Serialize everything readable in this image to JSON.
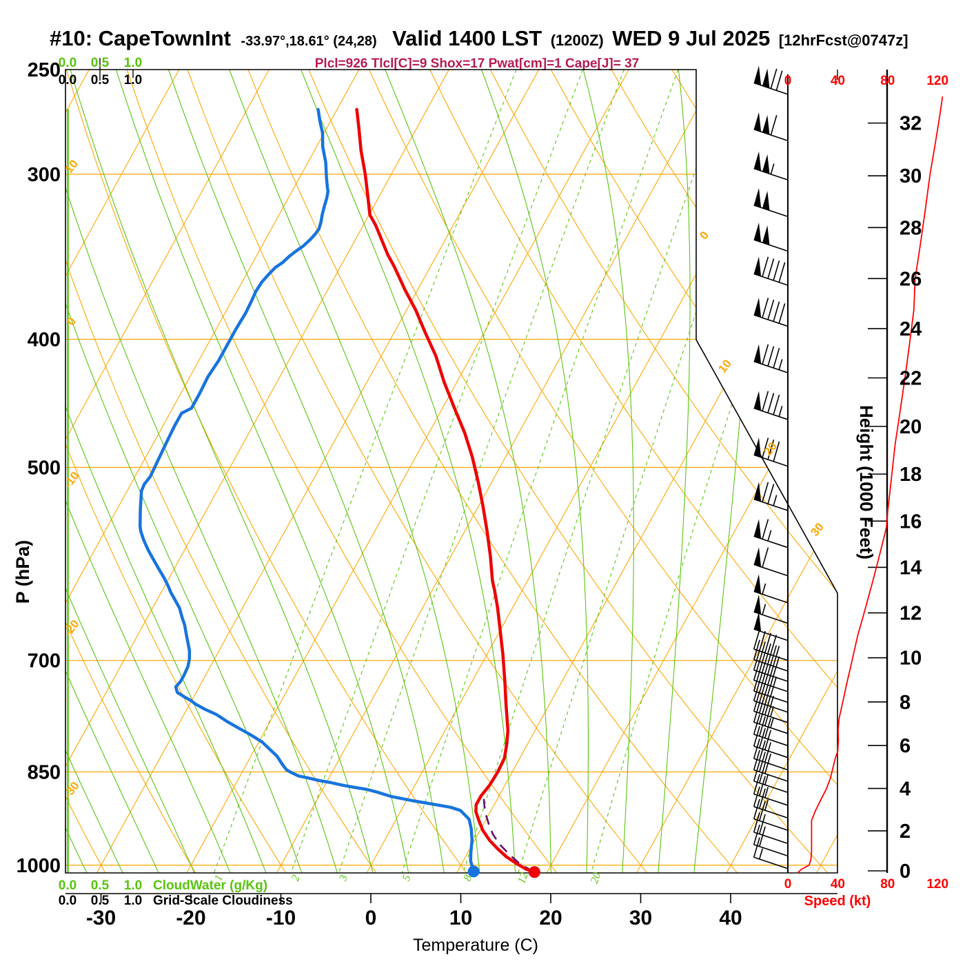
{
  "header": {
    "station": "#10: CapeTownInt",
    "coords": "-33.97°,18.61° (24,28)",
    "valid": "Valid 1400 LST",
    "zulu": "(1200Z)",
    "date": "WED 9 Jul 2025",
    "fcst": "[12hrFcst@0747z]"
  },
  "params_line": "Plcl=926 Tlcl[C]=9 Shox=17 Pwat[cm]=1 Cape[J]= 37",
  "axes": {
    "pressure_label": "P (hPa)",
    "pressure_ticks": [
      250,
      300,
      400,
      500,
      700,
      850,
      1000
    ],
    "temp_label": "Temperature (C)",
    "temp_ticks": [
      -30,
      -20,
      -10,
      0,
      10,
      20,
      30,
      40
    ],
    "height_label": "Height (1000 Feet)",
    "height_ticks": [
      0,
      2,
      4,
      6,
      8,
      10,
      12,
      14,
      16,
      18,
      20,
      22,
      24,
      26,
      28,
      30,
      32
    ],
    "speed_label": "Speed (kt)",
    "speed_ticks": [
      0,
      40,
      80,
      120
    ],
    "cloudwater_label": "CloudWater (g/Kg)",
    "cloudiness_label": "Grid-Scale Cloudiness",
    "cloud_ticks": [
      "0.0",
      "0.5",
      "1.0"
    ],
    "theta_labels_left": [
      "10",
      "0",
      "-10",
      "-20",
      "-30"
    ],
    "isotherm_labels_right": [
      "0",
      "10",
      "20",
      "30"
    ],
    "mixing_ratio_labels": [
      "1",
      "2",
      "3",
      "5",
      "8",
      "12",
      "20"
    ]
  },
  "colors": {
    "grid_orange": "#ffa600",
    "grid_green": "#58c40e",
    "temperature_red": "#ee0000",
    "dewpoint_blue": "#1874dd",
    "parcel_purple": "#5e1168",
    "speed_red": "#ff0000",
    "params_crimson": "#b81b54",
    "ink": "#000000"
  },
  "chart_data": {
    "type": "line",
    "title": "#10: CapeTownInt Skew-T log-P sounding, valid 1400 LST (1200Z) WED 9 Jul 2025",
    "xlabel": "Temperature (C)",
    "ylabel": "P (hPa)",
    "ylim": [
      1013,
      250
    ],
    "xlim_surface": [
      -34,
      52
    ],
    "parameters": {
      "Plcl": 926,
      "Tlcl_C": 9,
      "Shox": 17,
      "Pwat_cm": 1,
      "Cape_J": 37
    },
    "temperature": [
      [
        268,
        -47.8
      ],
      [
        277,
        -46.4
      ],
      [
        288,
        -44.8
      ],
      [
        300,
        -42.9
      ],
      [
        310,
        -41.5
      ],
      [
        322,
        -39.9
      ],
      [
        328,
        -38.6
      ],
      [
        335,
        -37.3
      ],
      [
        345,
        -35.5
      ],
      [
        352,
        -34.1
      ],
      [
        358,
        -33.0
      ],
      [
        367,
        -31.4
      ],
      [
        380,
        -29.0
      ],
      [
        395,
        -26.6
      ],
      [
        412,
        -23.9
      ],
      [
        431,
        -21.4
      ],
      [
        450,
        -18.8
      ],
      [
        471,
        -16.0
      ],
      [
        491,
        -13.7
      ],
      [
        513,
        -11.5
      ],
      [
        535,
        -9.5
      ],
      [
        559,
        -7.5
      ],
      [
        584,
        -5.6
      ],
      [
        609,
        -3.9
      ],
      [
        619,
        -3.1
      ],
      [
        638,
        -1.7
      ],
      [
        661,
        -0.2
      ],
      [
        693,
        1.8
      ],
      [
        727,
        3.7
      ],
      [
        754,
        5.1
      ],
      [
        791,
        7.0
      ],
      [
        810,
        7.7
      ],
      [
        830,
        8.3
      ],
      [
        850,
        8.4
      ],
      [
        870,
        8.3
      ],
      [
        886,
        8.0
      ],
      [
        900,
        8.0
      ],
      [
        911,
        8.4
      ],
      [
        924,
        9.2
      ],
      [
        941,
        10.3
      ],
      [
        958,
        11.7
      ],
      [
        972,
        13.1
      ],
      [
        985,
        14.5
      ],
      [
        998,
        16.2
      ],
      [
        1007,
        17.5
      ],
      [
        1012,
        18.6
      ]
    ],
    "dewpoint": [
      [
        268,
        -52.1
      ],
      [
        274,
        -51.1
      ],
      [
        279,
        -50.2
      ],
      [
        286,
        -49.3
      ],
      [
        294,
        -48.0
      ],
      [
        301,
        -47.1
      ],
      [
        307,
        -46.3
      ],
      [
        309,
        -46.0
      ],
      [
        313,
        -45.7
      ],
      [
        317,
        -45.5
      ],
      [
        322,
        -45.2
      ],
      [
        326,
        -44.9
      ],
      [
        330,
        -44.7
      ],
      [
        333,
        -44.8
      ],
      [
        336,
        -45.0
      ],
      [
        340,
        -45.4
      ],
      [
        343,
        -45.9
      ],
      [
        346,
        -46.3
      ],
      [
        350,
        -46.7
      ],
      [
        353,
        -47.2
      ],
      [
        357,
        -47.5
      ],
      [
        362,
        -47.8
      ],
      [
        368,
        -47.9
      ],
      [
        373,
        -47.8
      ],
      [
        382,
        -47.7
      ],
      [
        393,
        -47.8
      ],
      [
        404,
        -47.8
      ],
      [
        415,
        -47.8
      ],
      [
        427,
        -48.0
      ],
      [
        439,
        -47.9
      ],
      [
        451,
        -47.9
      ],
      [
        455,
        -48.7
      ],
      [
        465,
        -48.7
      ],
      [
        477,
        -48.6
      ],
      [
        488,
        -48.5
      ],
      [
        498,
        -48.4
      ],
      [
        508,
        -48.3
      ],
      [
        515,
        -48.5
      ],
      [
        521,
        -48.4
      ],
      [
        538,
        -47.4
      ],
      [
        554,
        -46.4
      ],
      [
        559,
        -46.0
      ],
      [
        567,
        -45.2
      ],
      [
        577,
        -44.1
      ],
      [
        586,
        -43.0
      ],
      [
        596,
        -41.8
      ],
      [
        605,
        -40.7
      ],
      [
        614,
        -39.7
      ],
      [
        622,
        -38.9
      ],
      [
        629,
        -38.1
      ],
      [
        639,
        -37.0
      ],
      [
        650,
        -36.1
      ],
      [
        658,
        -35.4
      ],
      [
        668,
        -34.7
      ],
      [
        678,
        -34.0
      ],
      [
        688,
        -33.3
      ],
      [
        698,
        -32.8
      ],
      [
        707,
        -32.5
      ],
      [
        718,
        -32.4
      ],
      [
        726,
        -32.4
      ],
      [
        733,
        -32.6
      ],
      [
        740,
        -32.1
      ],
      [
        746,
        -31.0
      ],
      [
        751,
        -30.0
      ],
      [
        755,
        -29.4
      ],
      [
        762,
        -28.0
      ],
      [
        769,
        -26.4
      ],
      [
        779,
        -24.7
      ],
      [
        788,
        -23.0
      ],
      [
        797,
        -21.3
      ],
      [
        807,
        -19.6
      ],
      [
        819,
        -18.1
      ],
      [
        827,
        -17.1
      ],
      [
        839,
        -16.0
      ],
      [
        847,
        -15.2
      ],
      [
        851,
        -14.5
      ],
      [
        856,
        -13.5
      ],
      [
        859,
        -12.3
      ],
      [
        863,
        -10.9
      ],
      [
        866,
        -9.5
      ],
      [
        870,
        -8.0
      ],
      [
        873,
        -6.7
      ],
      [
        876,
        -5.2
      ],
      [
        880,
        -3.9
      ],
      [
        887,
        -2.0
      ],
      [
        894,
        0.8
      ],
      [
        899,
        3.1
      ],
      [
        904,
        5.3
      ],
      [
        909,
        6.6
      ],
      [
        923,
        8.1
      ],
      [
        938,
        8.9
      ],
      [
        957,
        9.7
      ],
      [
        977,
        10.3
      ],
      [
        992,
        10.8
      ],
      [
        1011,
        11.8
      ]
    ],
    "parcel": [
      [
        891,
        8.5
      ],
      [
        902,
        9.0
      ],
      [
        916,
        9.7
      ],
      [
        931,
        10.6
      ],
      [
        948,
        11.7
      ],
      [
        965,
        13.1
      ],
      [
        983,
        14.9
      ],
      [
        998,
        16.5
      ],
      [
        1012,
        18.6
      ]
    ],
    "winds_kt": [
      [
        261,
        120
      ],
      [
        283,
        110
      ],
      [
        303,
        105
      ],
      [
        323,
        100
      ],
      [
        343,
        100
      ],
      [
        364,
        90
      ],
      [
        391,
        90
      ],
      [
        424,
        85
      ],
      [
        460,
        85
      ],
      [
        499,
        80
      ],
      [
        539,
        75
      ],
      [
        575,
        65
      ],
      [
        604,
        60
      ],
      [
        633,
        55
      ],
      [
        656,
        55
      ],
      [
        676,
        50
      ],
      [
        700,
        45
      ],
      [
        713,
        45
      ],
      [
        726,
        40
      ],
      [
        739,
        40
      ],
      [
        753,
        40
      ],
      [
        766,
        35
      ],
      [
        780,
        35
      ],
      [
        795,
        35
      ],
      [
        812,
        30
      ],
      [
        829,
        30
      ],
      [
        847,
        30
      ],
      [
        864,
        30
      ],
      [
        881,
        25
      ],
      [
        901,
        25
      ],
      [
        921,
        25
      ],
      [
        941,
        20
      ],
      [
        963,
        20
      ],
      [
        984,
        20
      ],
      [
        1006,
        15
      ]
    ],
    "speed_profile": [
      [
        1013,
        8
      ],
      [
        1007,
        11
      ],
      [
        1000,
        17
      ],
      [
        990,
        18.5
      ],
      [
        975,
        19
      ],
      [
        950,
        19
      ],
      [
        925,
        19
      ],
      [
        910,
        22
      ],
      [
        890,
        27
      ],
      [
        875,
        31
      ],
      [
        860,
        34
      ],
      [
        845,
        36
      ],
      [
        830,
        38
      ],
      [
        820,
        40
      ],
      [
        805,
        40.5
      ],
      [
        790,
        40.3
      ],
      [
        775,
        41
      ],
      [
        760,
        43
      ],
      [
        745,
        45
      ],
      [
        730,
        47
      ],
      [
        710,
        50
      ],
      [
        690,
        53
      ],
      [
        670,
        56
      ],
      [
        650,
        60
      ],
      [
        630,
        64
      ],
      [
        610,
        68
      ],
      [
        590,
        72
      ],
      [
        570,
        76
      ],
      [
        555,
        79
      ],
      [
        540,
        80
      ],
      [
        520,
        82
      ],
      [
        500,
        84
      ],
      [
        480,
        86
      ],
      [
        460,
        89
      ],
      [
        440,
        92
      ],
      [
        420,
        95
      ],
      [
        400,
        98
      ],
      [
        380,
        101
      ],
      [
        360,
        102
      ],
      [
        340,
        106
      ],
      [
        320,
        110
      ],
      [
        300,
        114
      ],
      [
        285,
        118
      ],
      [
        270,
        122
      ],
      [
        262,
        124
      ]
    ],
    "surface": {
      "temperature_c": 18.6,
      "dewpoint_c": 11.8
    }
  }
}
